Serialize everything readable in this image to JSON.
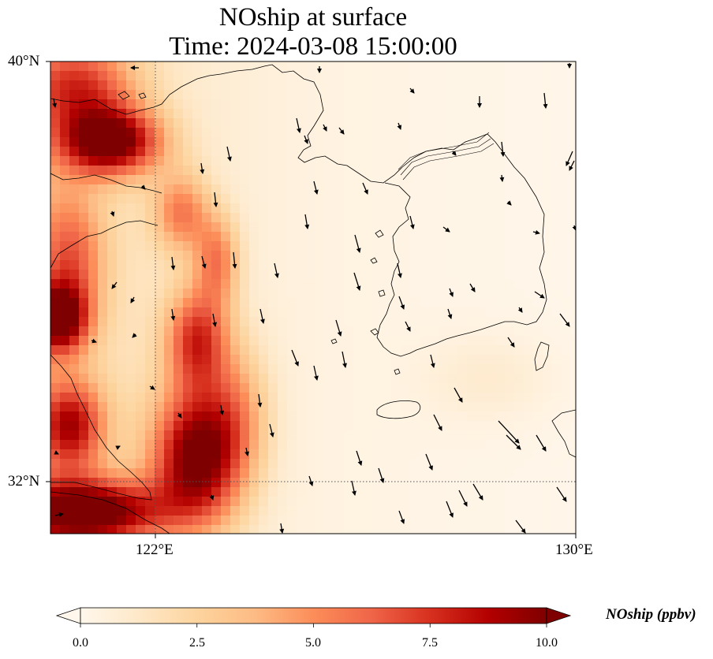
{
  "title": {
    "line1": "NOship at surface",
    "line2": "Time: 2024-03-08 15:00:00"
  },
  "axes": {
    "lat_ticks": [
      "40°N",
      "32°N"
    ],
    "lon_ticks": [
      "122°E",
      "130°E"
    ],
    "gridlines": "dotted"
  },
  "colorbar": {
    "label": "NOship (ppbv)",
    "ticks": [
      "0.0",
      "2.5",
      "5.0",
      "7.5",
      "10.0"
    ],
    "range": [
      0,
      10
    ],
    "extend": "both",
    "colormap": "OrRd",
    "colors": [
      "#fff7ec",
      "#fee8c8",
      "#fdd49e",
      "#fdbb84",
      "#fc8d59",
      "#ef6548",
      "#d7301f",
      "#b30000",
      "#7f0000"
    ]
  },
  "chart_data": {
    "type": "heatmap",
    "title": "NOship at surface",
    "subtitle": "Time: 2024-03-08 15:00:00",
    "variable": "NOship",
    "units": "ppbv",
    "lon_range": [
      120,
      130
    ],
    "lat_range": [
      31,
      40
    ],
    "value_range": [
      0,
      10
    ],
    "overlay": "wind vectors",
    "field_description": "High NOship concentrations (5-10 ppbv) along the Chinese coastline and shipping lanes in the western Yellow Sea (near 120-123°E), peaking near 32°N and 38-39°N; concentrations decrease eastward to near 0 over the Korean Peninsula and eastern sea."
  }
}
